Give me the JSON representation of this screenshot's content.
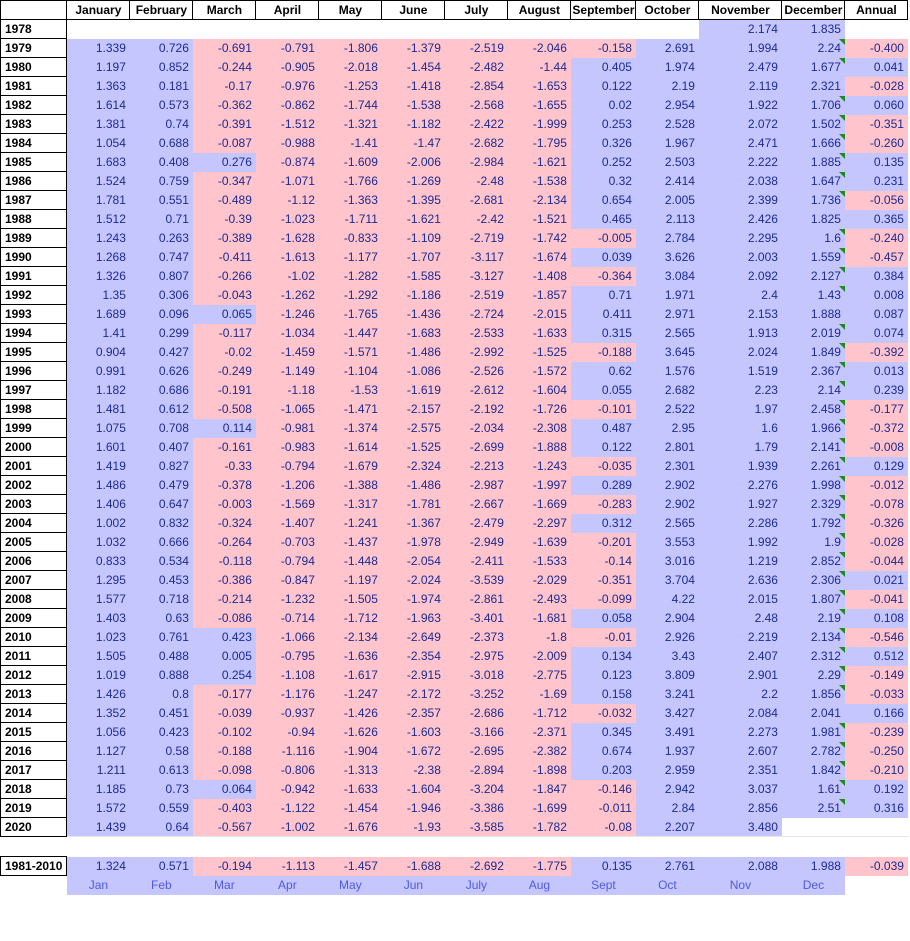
{
  "headers": [
    "",
    "January",
    "February",
    "March",
    "April",
    "May",
    "June",
    "July",
    "August",
    "September",
    "October",
    "November",
    "December",
    "Annual"
  ],
  "rows": [
    {
      "year": "1978",
      "cells": [
        "",
        "",
        "",
        "",
        "",
        "",
        "",
        "",
        "",
        "",
        "2.174",
        "1.835",
        ""
      ]
    },
    {
      "year": "1979",
      "cells": [
        "1.339",
        "0.726",
        "-0.691",
        "-0.791",
        "-1.806",
        "-1.379",
        "-2.519",
        "-2.046",
        "-0.158",
        "2.691",
        "1.994",
        "2.24",
        "-0.400"
      ]
    },
    {
      "year": "1980",
      "cells": [
        "1.197",
        "0.852",
        "-0.244",
        "-0.905",
        "-2.018",
        "-1.454",
        "-2.482",
        "-1.44",
        "0.405",
        "1.974",
        "2.479",
        "1.677",
        "0.041"
      ]
    },
    {
      "year": "1981",
      "cells": [
        "1.363",
        "0.181",
        "-0.17",
        "-0.976",
        "-1.253",
        "-1.418",
        "-2.854",
        "-1.653",
        "0.122",
        "2.19",
        "2.119",
        "2.321",
        "-0.028"
      ]
    },
    {
      "year": "1982",
      "cells": [
        "1.614",
        "0.573",
        "-0.362",
        "-0.862",
        "-1.744",
        "-1.538",
        "-2.568",
        "-1.655",
        "0.02",
        "2.954",
        "1.922",
        "1.706",
        "0.060"
      ]
    },
    {
      "year": "1983",
      "cells": [
        "1.381",
        "0.74",
        "-0.391",
        "-1.512",
        "-1.321",
        "-1.182",
        "-2.422",
        "-1.999",
        "0.253",
        "2.528",
        "2.072",
        "1.502",
        "-0.351"
      ]
    },
    {
      "year": "1984",
      "cells": [
        "1.054",
        "0.688",
        "-0.087",
        "-0.988",
        "-1.41",
        "-1.47",
        "-2.682",
        "-1.795",
        "0.326",
        "1.967",
        "2.471",
        "1.666",
        "-0.260"
      ]
    },
    {
      "year": "1985",
      "cells": [
        "1.683",
        "0.408",
        "0.276",
        "-0.874",
        "-1.609",
        "-2.006",
        "-2.984",
        "-1.621",
        "0.252",
        "2.503",
        "2.222",
        "1.885",
        "0.135"
      ]
    },
    {
      "year": "1986",
      "cells": [
        "1.524",
        "0.759",
        "-0.347",
        "-1.071",
        "-1.766",
        "-1.269",
        "-2.48",
        "-1.538",
        "0.32",
        "2.414",
        "2.038",
        "1.647",
        "0.231"
      ]
    },
    {
      "year": "1987",
      "cells": [
        "1.781",
        "0.551",
        "-0.489",
        "-1.12",
        "-1.363",
        "-1.395",
        "-2.681",
        "-2.134",
        "0.654",
        "2.005",
        "2.399",
        "1.736",
        "-0.056"
      ]
    },
    {
      "year": "1988",
      "cells": [
        "1.512",
        "0.71",
        "-0.39",
        "-1.023",
        "-1.711",
        "-1.621",
        "-2.42",
        "-1.521",
        "0.465",
        "2.113",
        "2.426",
        "1.825",
        "0.365"
      ]
    },
    {
      "year": "1989",
      "cells": [
        "1.243",
        "0.263",
        "-0.389",
        "-1.628",
        "-0.833",
        "-1.109",
        "-2.719",
        "-1.742",
        "-0.005",
        "2.784",
        "2.295",
        "1.6",
        "-0.240"
      ]
    },
    {
      "year": "1990",
      "cells": [
        "1.268",
        "0.747",
        "-0.411",
        "-1.613",
        "-1.177",
        "-1.707",
        "-3.117",
        "-1.674",
        "0.039",
        "3.626",
        "2.003",
        "1.559",
        "-0.457"
      ]
    },
    {
      "year": "1991",
      "cells": [
        "1.326",
        "0.807",
        "-0.266",
        "-1.02",
        "-1.282",
        "-1.585",
        "-3.127",
        "-1.408",
        "-0.364",
        "3.084",
        "2.092",
        "2.127",
        "0.384"
      ]
    },
    {
      "year": "1992",
      "cells": [
        "1.35",
        "0.306",
        "-0.043",
        "-1.262",
        "-1.292",
        "-1.186",
        "-2.519",
        "-1.857",
        "0.71",
        "1.971",
        "2.4",
        "1.43",
        "0.008"
      ]
    },
    {
      "year": "1993",
      "cells": [
        "1.689",
        "0.096",
        "0.065",
        "-1.246",
        "-1.765",
        "-1.436",
        "-2.724",
        "-2.015",
        "0.411",
        "2.971",
        "2.153",
        "1.888",
        "0.087"
      ]
    },
    {
      "year": "1994",
      "cells": [
        "1.41",
        "0.299",
        "-0.117",
        "-1.034",
        "-1.447",
        "-1.683",
        "-2.533",
        "-1.633",
        "0.315",
        "2.565",
        "1.913",
        "2.019",
        "0.074"
      ]
    },
    {
      "year": "1995",
      "cells": [
        "0.904",
        "0.427",
        "-0.02",
        "-1.459",
        "-1.571",
        "-1.486",
        "-2.992",
        "-1.525",
        "-0.188",
        "3.645",
        "2.024",
        "1.849",
        "-0.392"
      ]
    },
    {
      "year": "1996",
      "cells": [
        "0.991",
        "0.626",
        "-0.249",
        "-1.149",
        "-1.104",
        "-1.086",
        "-2.526",
        "-1.572",
        "0.62",
        "1.576",
        "1.519",
        "2.367",
        "0.013"
      ]
    },
    {
      "year": "1997",
      "cells": [
        "1.182",
        "0.686",
        "-0.191",
        "-1.18",
        "-1.53",
        "-1.619",
        "-2.612",
        "-1.604",
        "0.055",
        "2.682",
        "2.23",
        "2.14",
        "0.239"
      ]
    },
    {
      "year": "1998",
      "cells": [
        "1.481",
        "0.612",
        "-0.508",
        "-1.065",
        "-1.471",
        "-2.157",
        "-2.192",
        "-1.726",
        "-0.101",
        "2.522",
        "1.97",
        "2.458",
        "-0.177"
      ]
    },
    {
      "year": "1999",
      "cells": [
        "1.075",
        "0.708",
        "0.114",
        "-0.981",
        "-1.374",
        "-2.575",
        "-2.034",
        "-2.308",
        "0.487",
        "2.95",
        "1.6",
        "1.966",
        "-0.372"
      ]
    },
    {
      "year": "2000",
      "cells": [
        "1.601",
        "0.407",
        "-0.161",
        "-0.983",
        "-1.614",
        "-1.525",
        "-2.699",
        "-1.888",
        "0.122",
        "2.801",
        "1.79",
        "2.141",
        "-0.008"
      ]
    },
    {
      "year": "2001",
      "cells": [
        "1.419",
        "0.827",
        "-0.33",
        "-0.794",
        "-1.679",
        "-2.324",
        "-2.213",
        "-1.243",
        "-0.035",
        "2.301",
        "1.939",
        "2.261",
        "0.129"
      ]
    },
    {
      "year": "2002",
      "cells": [
        "1.486",
        "0.479",
        "-0.378",
        "-1.206",
        "-1.388",
        "-1.486",
        "-2.987",
        "-1.997",
        "0.289",
        "2.902",
        "2.276",
        "1.998",
        "-0.012"
      ]
    },
    {
      "year": "2003",
      "cells": [
        "1.406",
        "0.647",
        "-0.003",
        "-1.569",
        "-1.317",
        "-1.781",
        "-2.667",
        "-1.669",
        "-0.283",
        "2.902",
        "1.927",
        "2.329",
        "-0.078"
      ]
    },
    {
      "year": "2004",
      "cells": [
        "1.002",
        "0.832",
        "-0.324",
        "-1.407",
        "-1.241",
        "-1.367",
        "-2.479",
        "-2.297",
        "0.312",
        "2.565",
        "2.286",
        "1.792",
        "-0.326"
      ]
    },
    {
      "year": "2005",
      "cells": [
        "1.032",
        "0.666",
        "-0.264",
        "-0.703",
        "-1.437",
        "-1.978",
        "-2.949",
        "-1.639",
        "-0.201",
        "3.553",
        "1.992",
        "1.9",
        "-0.028"
      ]
    },
    {
      "year": "2006",
      "cells": [
        "0.833",
        "0.534",
        "-0.118",
        "-0.794",
        "-1.448",
        "-2.054",
        "-2.411",
        "-1.533",
        "-0.14",
        "3.016",
        "1.219",
        "2.852",
        "-0.044"
      ]
    },
    {
      "year": "2007",
      "cells": [
        "1.295",
        "0.453",
        "-0.386",
        "-0.847",
        "-1.197",
        "-2.024",
        "-3.539",
        "-2.029",
        "-0.351",
        "3.704",
        "2.636",
        "2.306",
        "0.021"
      ]
    },
    {
      "year": "2008",
      "cells": [
        "1.577",
        "0.718",
        "-0.214",
        "-1.232",
        "-1.505",
        "-1.974",
        "-2.861",
        "-2.493",
        "-0.099",
        "4.22",
        "2.015",
        "1.807",
        "-0.041"
      ]
    },
    {
      "year": "2009",
      "cells": [
        "1.403",
        "0.63",
        "-0.086",
        "-0.714",
        "-1.712",
        "-1.963",
        "-3.401",
        "-1.681",
        "0.058",
        "2.904",
        "2.48",
        "2.19",
        "0.108"
      ]
    },
    {
      "year": "2010",
      "cells": [
        "1.023",
        "0.761",
        "0.423",
        "-1.066",
        "-2.134",
        "-2.649",
        "-2.373",
        "-1.8",
        "-0.01",
        "2.926",
        "2.219",
        "2.134",
        "-0.546"
      ]
    },
    {
      "year": "2011",
      "cells": [
        "1.505",
        "0.488",
        "0.005",
        "-0.795",
        "-1.636",
        "-2.354",
        "-2.975",
        "-2.009",
        "0.134",
        "3.43",
        "2.407",
        "2.312",
        "0.512"
      ]
    },
    {
      "year": "2012",
      "cells": [
        "1.019",
        "0.888",
        "0.254",
        "-1.108",
        "-1.617",
        "-2.915",
        "-3.018",
        "-2.775",
        "0.123",
        "3.809",
        "2.901",
        "2.29",
        "-0.149"
      ]
    },
    {
      "year": "2013",
      "cells": [
        "1.426",
        "0.8",
        "-0.177",
        "-1.176",
        "-1.247",
        "-2.172",
        "-3.252",
        "-1.69",
        "0.158",
        "3.241",
        "2.2",
        "1.856",
        "-0.033"
      ]
    },
    {
      "year": "2014",
      "cells": [
        "1.352",
        "0.451",
        "-0.039",
        "-0.937",
        "-1.426",
        "-2.357",
        "-2.686",
        "-1.712",
        "-0.032",
        "3.427",
        "2.084",
        "2.041",
        "0.166"
      ]
    },
    {
      "year": "2015",
      "cells": [
        "1.056",
        "0.423",
        "-0.102",
        "-0.94",
        "-1.626",
        "-1.603",
        "-3.166",
        "-2.371",
        "0.345",
        "3.491",
        "2.273",
        "1.981",
        "-0.239"
      ]
    },
    {
      "year": "2016",
      "cells": [
        "1.127",
        "0.58",
        "-0.188",
        "-1.116",
        "-1.904",
        "-1.672",
        "-2.695",
        "-2.382",
        "0.674",
        "1.937",
        "2.607",
        "2.782",
        "-0.250"
      ]
    },
    {
      "year": "2017",
      "cells": [
        "1.211",
        "0.613",
        "-0.098",
        "-0.806",
        "-1.313",
        "-2.38",
        "-2.894",
        "-1.898",
        "0.203",
        "2.959",
        "2.351",
        "1.842",
        "-0.210"
      ]
    },
    {
      "year": "2018",
      "cells": [
        "1.185",
        "0.73",
        "0.064",
        "-0.942",
        "-1.633",
        "-1.604",
        "-3.204",
        "-1.847",
        "-0.146",
        "2.942",
        "3.037",
        "1.61",
        "0.192"
      ]
    },
    {
      "year": "2019",
      "cells": [
        "1.572",
        "0.559",
        "-0.403",
        "-1.122",
        "-1.454",
        "-1.946",
        "-3.386",
        "-1.699",
        "-0.011",
        "2.84",
        "2.856",
        "2.51",
        "0.316"
      ]
    },
    {
      "year": "2020",
      "cells": [
        "1.439",
        "0.64",
        "-0.567",
        "-1.002",
        "-1.676",
        "-1.93",
        "-3.585",
        "-1.782",
        "-0.08",
        "2.207",
        "3.480",
        "",
        ""
      ]
    }
  ],
  "summary": {
    "year": "1981-2010",
    "cells": [
      "1.324",
      "0.571",
      "-0.194",
      "-1.113",
      "-1.457",
      "-1.688",
      "-2.692",
      "-1.775",
      "0.135",
      "2.761",
      "2.088",
      "1.988",
      "-0.039"
    ]
  },
  "month_abbrev": [
    "Jan",
    "Feb",
    "Mar",
    "Apr",
    "May",
    "Jun",
    "July",
    "Aug",
    "Sept",
    "Oct",
    "Nov",
    "Dec"
  ],
  "colors": {
    "positive": "#c6c6ff",
    "negative": "#ffc4cc",
    "text": "#1b2b8f",
    "comment_marker": "#1f8a1f"
  }
}
